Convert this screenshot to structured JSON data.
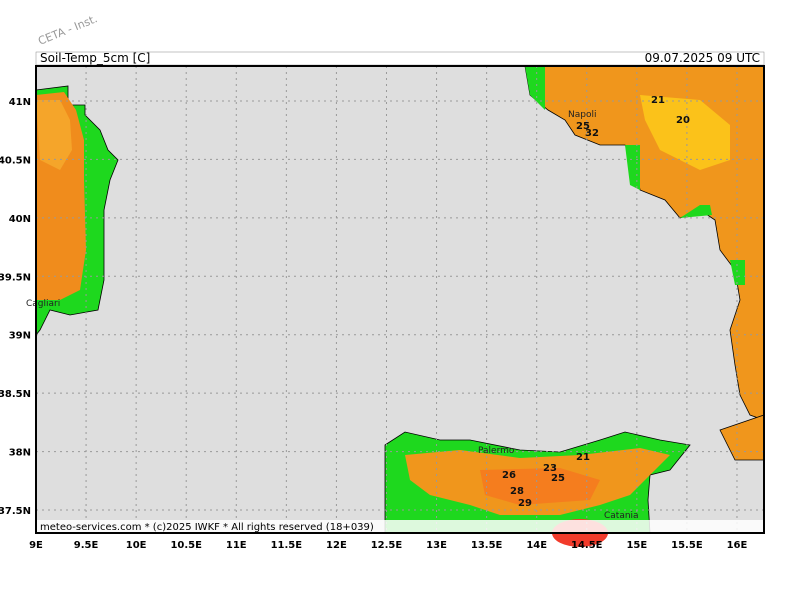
{
  "header": {
    "watermark": "CETA - Inst.",
    "title": "Soil-Temp_5cm [C]",
    "date": "09.07.2025 09 UTC"
  },
  "footer": "meteo-services.com * (c)2025 IWKF * All rights reserved (18+039)",
  "lon_labels": [
    "9E",
    "9.5E",
    "10E",
    "10.5E",
    "11E",
    "11.5E",
    "12E",
    "12.5E",
    "13E",
    "13.5E",
    "14E",
    "14.5E",
    "15E",
    "15.5E",
    "16E"
  ],
  "lat_labels": [
    "41N",
    "40.5N",
    "40N",
    "39.5N",
    "39N",
    "38.5N",
    "38N",
    "37.5N"
  ],
  "cities": [
    "Napoli",
    "Palermo",
    "Catania",
    "Cagliari"
  ],
  "contour_labels": [
    "21",
    "20",
    "25",
    "32",
    "26",
    "28",
    "29",
    "23",
    "25",
    "21"
  ]
}
